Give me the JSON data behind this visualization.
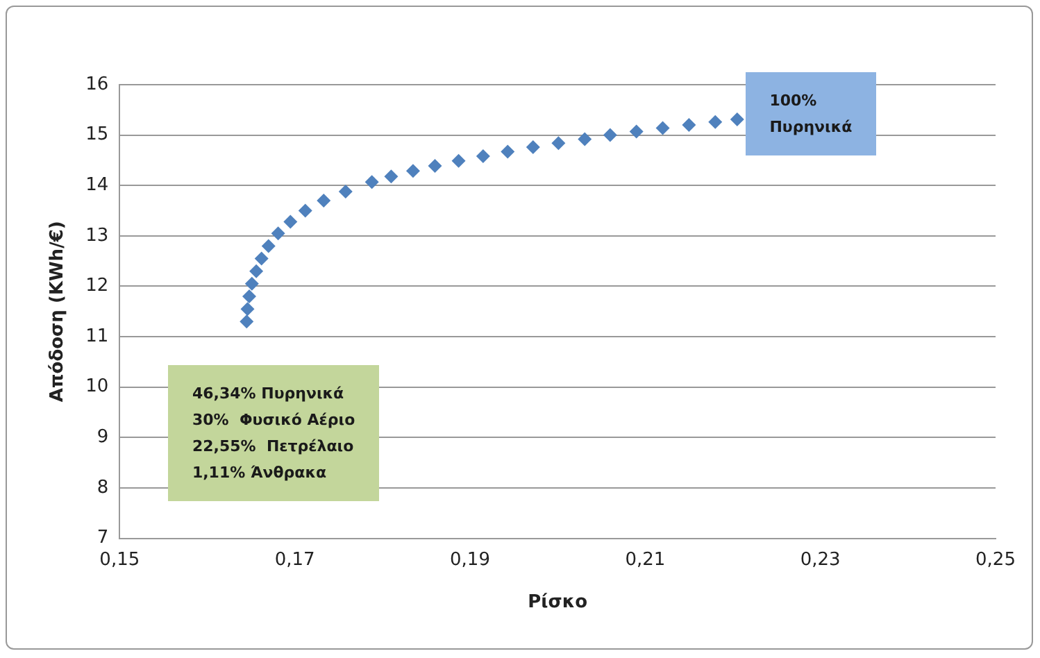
{
  "chart_data": {
    "type": "scatter",
    "xlabel": "Ρίσκο",
    "ylabel": "Απόδοση (KWh/€)",
    "x": [
      0.1645,
      0.1646,
      0.1648,
      0.1651,
      0.1656,
      0.1662,
      0.167,
      0.1681,
      0.1695,
      0.1712,
      0.1733,
      0.1758,
      0.1788,
      0.181,
      0.1835,
      0.186,
      0.1887,
      0.1915,
      0.1943,
      0.1972,
      0.2001,
      0.2031,
      0.206,
      0.209,
      0.212,
      0.215,
      0.218,
      0.2205
    ],
    "series": [
      {
        "color": "#4f81bd",
        "values": [
          11.3,
          11.55,
          11.8,
          12.05,
          12.3,
          12.55,
          12.8,
          13.05,
          13.28,
          13.5,
          13.7,
          13.88,
          14.07,
          14.18,
          14.29,
          14.39,
          14.49,
          14.58,
          14.67,
          14.76,
          14.84,
          14.92,
          15.0,
          15.07,
          15.14,
          15.2,
          15.26,
          15.31
        ]
      }
    ],
    "xlim": [
      0.15,
      0.25
    ],
    "ylim": [
      7,
      16
    ],
    "xticks": [
      {
        "value": 0.15,
        "label": "0,15"
      },
      {
        "value": 0.17,
        "label": "0,17"
      },
      {
        "value": 0.19,
        "label": "0,19"
      },
      {
        "value": 0.21,
        "label": "0,21"
      },
      {
        "value": 0.23,
        "label": "0,23"
      },
      {
        "value": 0.25,
        "label": "0,25"
      }
    ],
    "yticks": [
      7,
      8,
      9,
      10,
      11,
      12,
      13,
      14,
      15,
      16
    ],
    "grid": "y",
    "marker": "diamond",
    "legend": false,
    "annotations": [
      "100%\nΠυρηνικά",
      "46,34% Πυρηνικά\n30%  Φυσικό Αέριο\n22,55%  Πετρέλαιο\n1,11% Άνθρακα"
    ]
  }
}
